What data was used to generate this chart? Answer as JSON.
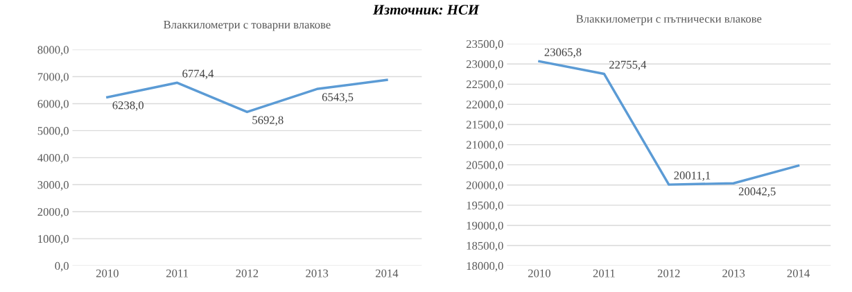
{
  "chart_data": [
    {
      "type": "line",
      "title": "Влаккилометри с товарни влакове",
      "categories": [
        "2010",
        "2011",
        "2012",
        "2013",
        "2014"
      ],
      "series": [
        {
          "color": "#5b9bd5",
          "values": [
            6238.0,
            6774.4,
            5692.8,
            6543.5,
            6880.0
          ],
          "value_labels": [
            "6238,0",
            "6774,4",
            "5692,8",
            "6543,5",
            null
          ]
        }
      ],
      "ylim": [
        0,
        8000
      ],
      "yticks": [
        {
          "value": 0,
          "label": "0,0"
        },
        {
          "value": 1000,
          "label": "1000,0"
        },
        {
          "value": 2000,
          "label": "2000,0"
        },
        {
          "value": 3000,
          "label": "3000,0"
        },
        {
          "value": 4000,
          "label": "4000,0"
        },
        {
          "value": 5000,
          "label": "5000,0"
        },
        {
          "value": 6000,
          "label": "6000,0"
        },
        {
          "value": 7000,
          "label": "7000,0"
        },
        {
          "value": 8000,
          "label": "8000,0"
        }
      ],
      "grid": "y",
      "legend": false,
      "marker": "none",
      "line_style": "solid",
      "annotations": [
        "Източник: НСИ"
      ]
    },
    {
      "type": "line",
      "title": "Влаккилометри с пътнически влакове",
      "categories": [
        "2010",
        "2011",
        "2012",
        "2013",
        "2014"
      ],
      "series": [
        {
          "color": "#5b9bd5",
          "values": [
            23065.8,
            22755.4,
            20011.1,
            20042.5,
            20480.0
          ],
          "value_labels": [
            "23065,8",
            "22755,4",
            "20011,1",
            "20042,5",
            null
          ]
        }
      ],
      "ylim": [
        18000,
        23500
      ],
      "yticks": [
        {
          "value": 18000,
          "label": "18000,0"
        },
        {
          "value": 18500,
          "label": "18500,0"
        },
        {
          "value": 19000,
          "label": "19000,0"
        },
        {
          "value": 19500,
          "label": "19500,0"
        },
        {
          "value": 20000,
          "label": "20000,0"
        },
        {
          "value": 20500,
          "label": "20500,0"
        },
        {
          "value": 21000,
          "label": "21000,0"
        },
        {
          "value": 21500,
          "label": "21500,0"
        },
        {
          "value": 22000,
          "label": "22000,0"
        },
        {
          "value": 22500,
          "label": "22500,0"
        },
        {
          "value": 23000,
          "label": "23000,0"
        },
        {
          "value": 23500,
          "label": "23500,0"
        }
      ],
      "grid": "y",
      "legend": false,
      "marker": "none",
      "line_style": "solid"
    }
  ]
}
